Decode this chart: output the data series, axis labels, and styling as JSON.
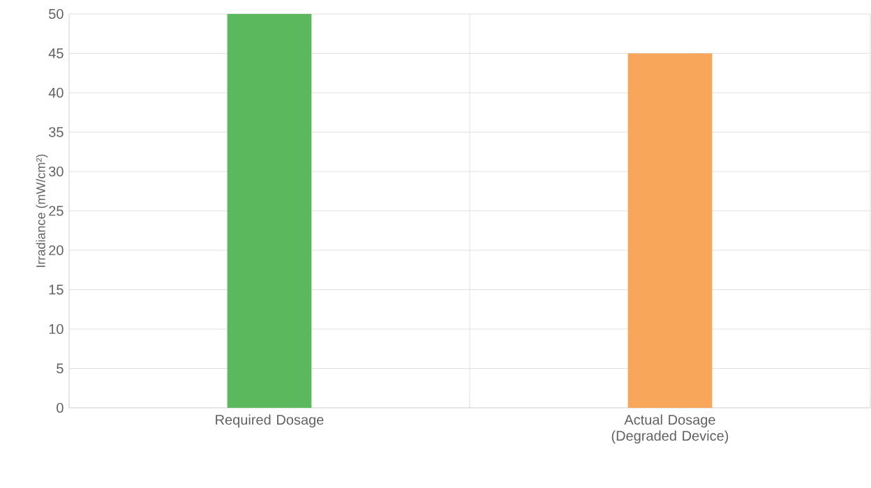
{
  "chart_data": {
    "type": "bar",
    "ylabel": "Irradiance (mW/cm²)",
    "categories": [
      "Required Dosage",
      "Actual Dosage (Degraded Device)"
    ],
    "values": [
      50,
      45
    ],
    "colors": [
      "#5cb85c",
      "#f8a65a"
    ],
    "ylim": [
      0,
      50
    ],
    "yticks": [
      0,
      5,
      10,
      15,
      20,
      25,
      30,
      35,
      40,
      45,
      50
    ],
    "grid": true
  }
}
